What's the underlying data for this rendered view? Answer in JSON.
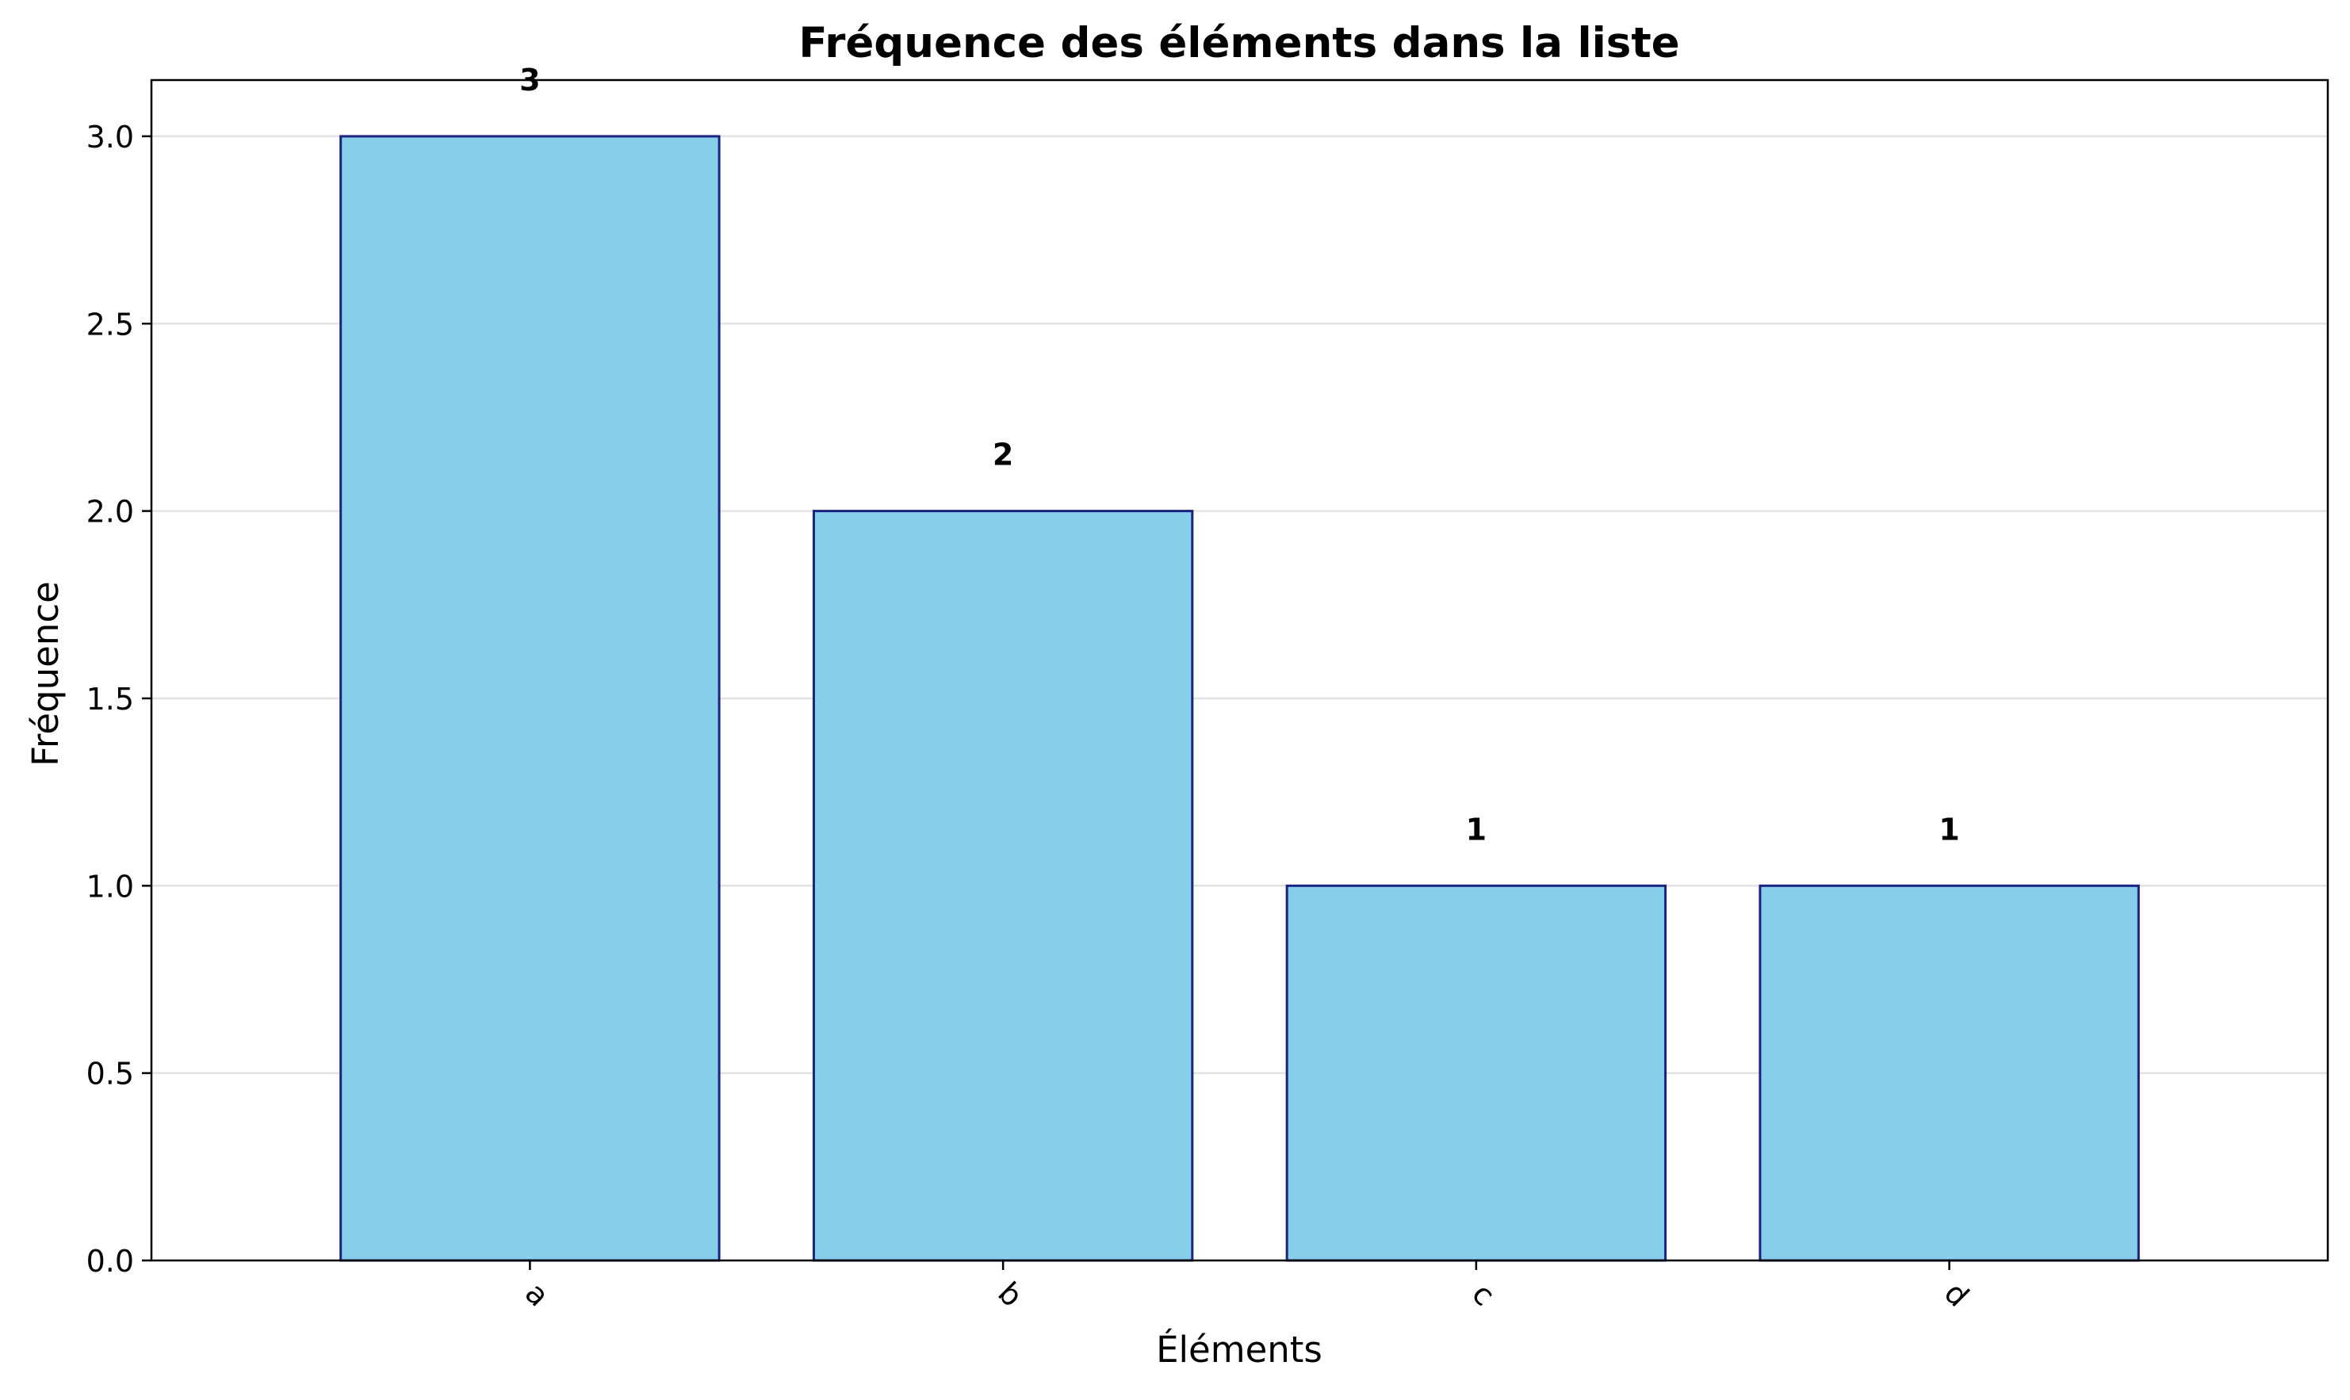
{
  "chart_data": {
    "type": "bar",
    "title": "Fréquence des éléments dans la liste",
    "xlabel": "Éléments",
    "ylabel": "Fréquence",
    "categories": [
      "a",
      "b",
      "c",
      "d"
    ],
    "values": [
      3,
      2,
      1,
      1
    ],
    "data_labels": [
      "3",
      "2",
      "1",
      "1"
    ],
    "ylim": [
      0,
      3.15
    ],
    "yticks": [
      0.0,
      0.5,
      1.0,
      1.5,
      2.0,
      2.5,
      3.0
    ],
    "ytick_labels": [
      "0.0",
      "0.5",
      "1.0",
      "1.5",
      "2.0",
      "2.5",
      "3.0"
    ],
    "grid": "y",
    "legend": "none",
    "x_tick_rotation": 45,
    "colors": {
      "bar_fill": "#87CEEB",
      "bar_edge": "#1a237e",
      "grid": "#e3e3e3",
      "axis": "#000000",
      "text": "#000000"
    }
  }
}
